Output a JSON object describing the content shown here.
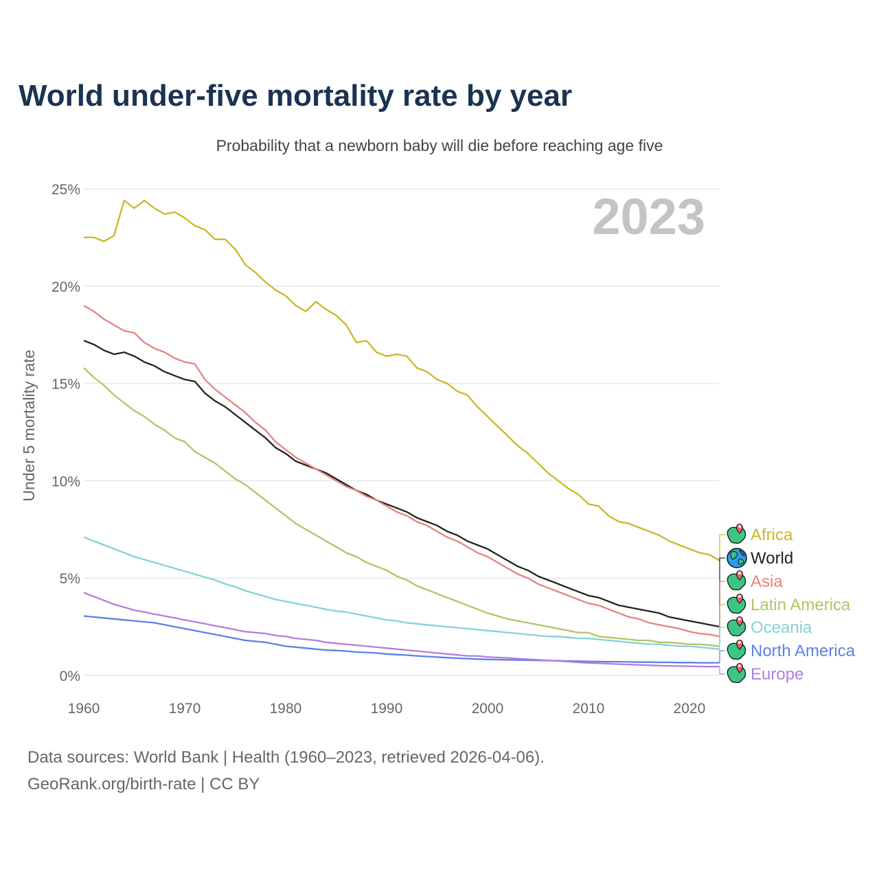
{
  "chart_data": {
    "type": "line",
    "title": "World under-five mortality rate by year",
    "subtitle": "Probability that a newborn baby will die before reaching age five",
    "ylabel": "Under 5 mortality rate",
    "xlabel": "",
    "year_label": "2023",
    "xlim": [
      1960,
      2023
    ],
    "ylim": [
      0,
      25
    ],
    "x_ticks": [
      1960,
      1970,
      1980,
      1990,
      2000,
      2010,
      2020
    ],
    "x_tick_labels": [
      "1960",
      "1970",
      "1980",
      "1990",
      "2000",
      "2010",
      "2020"
    ],
    "y_ticks": [
      0,
      5,
      10,
      15,
      20,
      25
    ],
    "y_tick_labels": [
      "0%",
      "5%",
      "10%",
      "15%",
      "20%",
      "25%"
    ],
    "grid": true,
    "legend_placement": "right-end-labels",
    "x_start": 1960,
    "series": [
      {
        "name": "Africa",
        "color": "#c9b824",
        "icon": "africa-map-pin-icon",
        "values": [
          22.5,
          22.5,
          22.3,
          22.6,
          24.4,
          24.0,
          24.4,
          24.0,
          23.7,
          23.8,
          23.5,
          23.1,
          22.9,
          22.4,
          22.4,
          21.9,
          21.1,
          20.7,
          20.2,
          19.8,
          19.5,
          19.0,
          18.7,
          19.2,
          18.8,
          18.5,
          18.0,
          17.1,
          17.2,
          16.6,
          16.4,
          16.5,
          16.4,
          15.8,
          15.6,
          15.2,
          15.0,
          14.6,
          14.4,
          13.8,
          13.3,
          12.8,
          12.3,
          11.8,
          11.4,
          10.9,
          10.4,
          10.0,
          9.6,
          9.3,
          8.8,
          8.7,
          8.2,
          7.9,
          7.8,
          7.6,
          7.4,
          7.2,
          6.9,
          6.7,
          6.5,
          6.3,
          6.2,
          5.9
        ]
      },
      {
        "name": "World",
        "color": "#222222",
        "icon": "globe-icon",
        "values": [
          17.2,
          17.0,
          16.7,
          16.5,
          16.6,
          16.4,
          16.1,
          15.9,
          15.6,
          15.4,
          15.2,
          15.1,
          14.5,
          14.1,
          13.8,
          13.4,
          13.0,
          12.6,
          12.2,
          11.7,
          11.4,
          11.0,
          10.8,
          10.6,
          10.4,
          10.1,
          9.8,
          9.5,
          9.3,
          9.0,
          8.8,
          8.6,
          8.4,
          8.1,
          7.9,
          7.7,
          7.4,
          7.2,
          6.9,
          6.7,
          6.5,
          6.2,
          5.9,
          5.6,
          5.4,
          5.1,
          4.9,
          4.7,
          4.5,
          4.3,
          4.1,
          4.0,
          3.8,
          3.6,
          3.5,
          3.4,
          3.3,
          3.2,
          3.0,
          2.9,
          2.8,
          2.7,
          2.6,
          2.5
        ]
      },
      {
        "name": "Asia",
        "color": "#ea8080",
        "icon": "asia-map-pin-icon",
        "values": [
          19.0,
          18.7,
          18.3,
          18.0,
          17.7,
          17.6,
          17.1,
          16.8,
          16.6,
          16.3,
          16.1,
          16.0,
          15.2,
          14.7,
          14.3,
          13.9,
          13.5,
          13.0,
          12.6,
          12.0,
          11.6,
          11.2,
          10.9,
          10.6,
          10.3,
          10.0,
          9.7,
          9.5,
          9.2,
          9.0,
          8.7,
          8.4,
          8.2,
          7.9,
          7.7,
          7.4,
          7.1,
          6.9,
          6.6,
          6.3,
          6.1,
          5.8,
          5.5,
          5.2,
          5.0,
          4.7,
          4.5,
          4.3,
          4.1,
          3.9,
          3.7,
          3.6,
          3.4,
          3.2,
          3.0,
          2.9,
          2.7,
          2.6,
          2.5,
          2.4,
          2.25,
          2.15,
          2.1,
          2.0
        ]
      },
      {
        "name": "Latin America",
        "color": "#b5c265",
        "icon": "latin-america-map-pin-icon",
        "values": [
          15.8,
          15.3,
          14.9,
          14.4,
          14.0,
          13.6,
          13.3,
          12.9,
          12.6,
          12.2,
          12.0,
          11.5,
          11.2,
          10.9,
          10.5,
          10.1,
          9.8,
          9.4,
          9.0,
          8.6,
          8.2,
          7.8,
          7.5,
          7.2,
          6.9,
          6.6,
          6.3,
          6.1,
          5.8,
          5.6,
          5.4,
          5.1,
          4.9,
          4.6,
          4.4,
          4.2,
          4.0,
          3.8,
          3.6,
          3.4,
          3.2,
          3.05,
          2.9,
          2.8,
          2.7,
          2.6,
          2.5,
          2.4,
          2.3,
          2.2,
          2.2,
          2.0,
          1.95,
          1.9,
          1.85,
          1.8,
          1.8,
          1.7,
          1.7,
          1.65,
          1.6,
          1.6,
          1.55,
          1.5
        ]
      },
      {
        "name": "Oceania",
        "color": "#85d1d6",
        "icon": "oceania-map-pin-icon",
        "values": [
          7.1,
          6.9,
          6.7,
          6.5,
          6.3,
          6.1,
          5.95,
          5.8,
          5.65,
          5.5,
          5.35,
          5.2,
          5.05,
          4.9,
          4.7,
          4.55,
          4.35,
          4.2,
          4.05,
          3.9,
          3.8,
          3.7,
          3.6,
          3.5,
          3.4,
          3.3,
          3.25,
          3.15,
          3.05,
          2.95,
          2.85,
          2.8,
          2.7,
          2.65,
          2.6,
          2.55,
          2.5,
          2.45,
          2.4,
          2.35,
          2.3,
          2.25,
          2.2,
          2.15,
          2.1,
          2.05,
          2.0,
          2.0,
          1.95,
          1.9,
          1.9,
          1.85,
          1.8,
          1.75,
          1.7,
          1.65,
          1.6,
          1.6,
          1.55,
          1.5,
          1.5,
          1.45,
          1.4,
          1.35
        ]
      },
      {
        "name": "North America",
        "color": "#5a80e8",
        "icon": "north-america-map-pin-icon",
        "values": [
          3.05,
          3.0,
          2.95,
          2.9,
          2.85,
          2.8,
          2.75,
          2.7,
          2.6,
          2.5,
          2.4,
          2.3,
          2.2,
          2.1,
          2.0,
          1.9,
          1.8,
          1.75,
          1.7,
          1.6,
          1.5,
          1.45,
          1.4,
          1.35,
          1.3,
          1.28,
          1.25,
          1.2,
          1.18,
          1.15,
          1.1,
          1.07,
          1.04,
          1.0,
          0.97,
          0.94,
          0.91,
          0.88,
          0.86,
          0.84,
          0.82,
          0.81,
          0.8,
          0.79,
          0.78,
          0.77,
          0.76,
          0.75,
          0.74,
          0.73,
          0.72,
          0.71,
          0.7,
          0.7,
          0.69,
          0.68,
          0.68,
          0.67,
          0.67,
          0.66,
          0.66,
          0.65,
          0.65,
          0.65
        ]
      },
      {
        "name": "Europe",
        "color": "#b07ee0",
        "icon": "europe-map-pin-icon",
        "values": [
          4.25,
          4.05,
          3.85,
          3.65,
          3.5,
          3.35,
          3.25,
          3.15,
          3.05,
          2.95,
          2.85,
          2.75,
          2.65,
          2.55,
          2.45,
          2.35,
          2.25,
          2.2,
          2.15,
          2.05,
          2.0,
          1.9,
          1.85,
          1.8,
          1.7,
          1.65,
          1.6,
          1.55,
          1.5,
          1.45,
          1.4,
          1.35,
          1.3,
          1.25,
          1.2,
          1.15,
          1.1,
          1.05,
          1.0,
          1.0,
          0.95,
          0.92,
          0.9,
          0.86,
          0.83,
          0.8,
          0.77,
          0.74,
          0.71,
          0.67,
          0.64,
          0.62,
          0.6,
          0.58,
          0.56,
          0.54,
          0.52,
          0.5,
          0.49,
          0.48,
          0.47,
          0.46,
          0.45,
          0.45
        ]
      }
    ]
  },
  "colors": {
    "title": "#1a3350",
    "year_watermark": "#c4c4c4",
    "grid": "#e8e8e8",
    "axis_text": "#666666"
  },
  "footer": {
    "line1": "Data sources: World Bank | Health (1960–2023, retrieved 2026-04-06).",
    "line2": "GeoRank.org/birth-rate | CC BY"
  }
}
